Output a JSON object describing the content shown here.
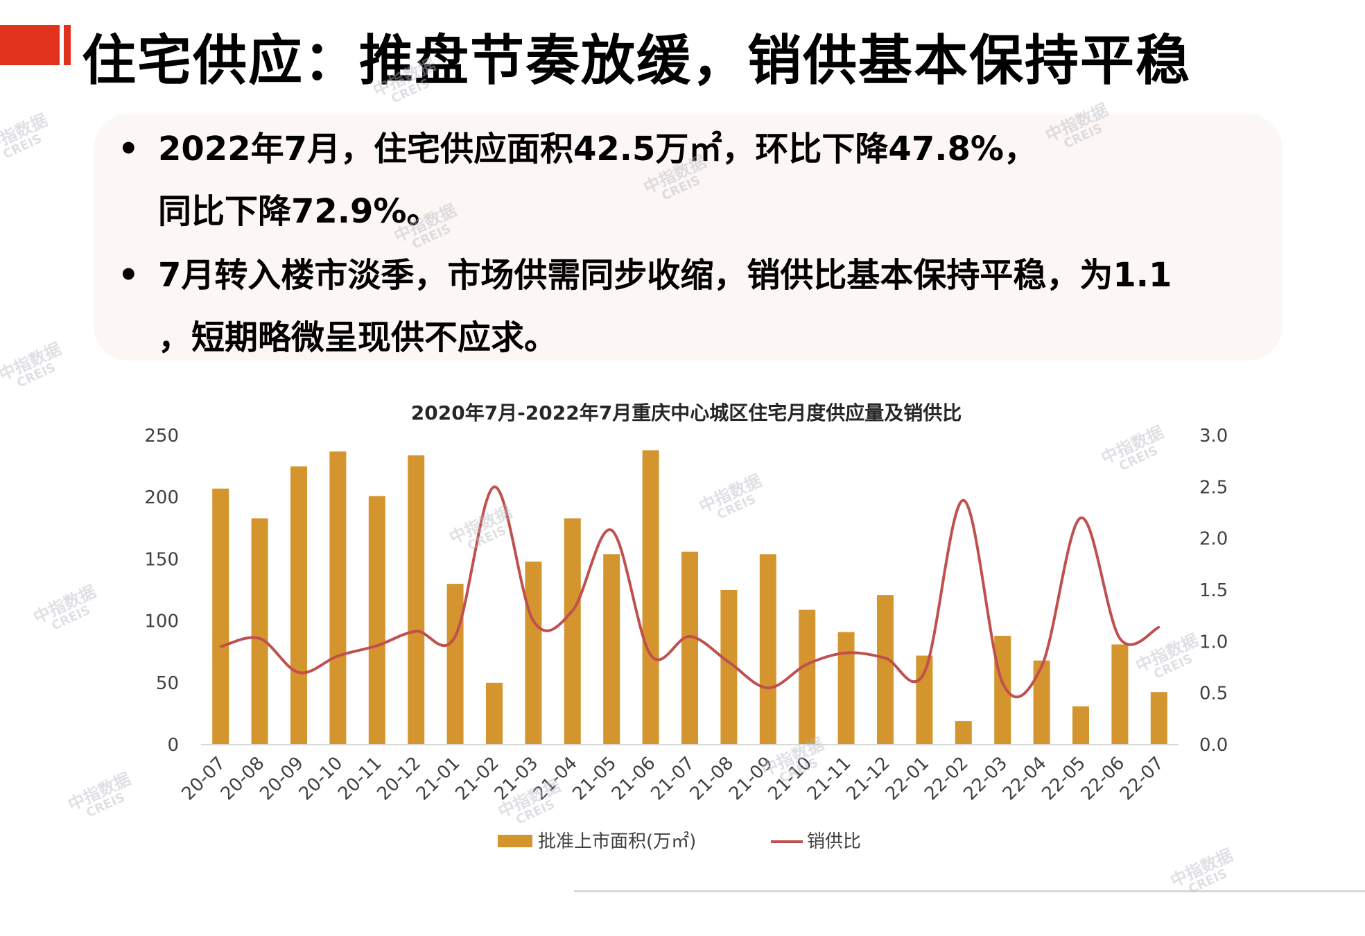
{
  "header": {
    "title": "住宅供应：推盘节奏放缓，销供基本保持平稳"
  },
  "bullets": [
    {
      "marker": "•",
      "line1": "2022年7月，住宅供应面积42.5万㎡，环比下降47.8%，",
      "line2": "同比下降72.9%。"
    },
    {
      "marker": "•",
      "line1": "7月转入楼市淡季，市场供需同步收缩，销供比基本保持平稳，为1.1",
      "line2": "，短期略微呈现供不应求。"
    }
  ],
  "watermark": {
    "cn": "中指数据",
    "en": "CREIS"
  },
  "colors": {
    "accent": "#e0321c",
    "bar": "#d4952f",
    "line": "#c0504d"
  },
  "chart_data": {
    "type": "bar",
    "title": "2020年7月-2022年7月重庆中心城区住宅月度供应量及销供比",
    "categories": [
      "20-07",
      "20-08",
      "20-09",
      "20-10",
      "20-11",
      "20-12",
      "21-01",
      "21-02",
      "21-03",
      "21-04",
      "21-05",
      "21-06",
      "21-07",
      "21-08",
      "21-09",
      "21-10",
      "21-11",
      "21-12",
      "22-01",
      "22-02",
      "22-03",
      "22-04",
      "22-05",
      "22-06",
      "22-07"
    ],
    "series": [
      {
        "name": "批准上市面积(万㎡)",
        "type": "bar",
        "axis": "left",
        "values": [
          207,
          183,
          225,
          237,
          201,
          234,
          130,
          50,
          148,
          183,
          154,
          238,
          156,
          125,
          154,
          109,
          91,
          121,
          72,
          19,
          88,
          68,
          31,
          81,
          42.5
        ]
      },
      {
        "name": "销供比",
        "type": "line",
        "axis": "right",
        "values": [
          0.95,
          1.03,
          0.7,
          0.86,
          0.96,
          1.1,
          1.05,
          2.5,
          1.2,
          1.3,
          2.08,
          0.87,
          1.05,
          0.8,
          0.55,
          0.78,
          0.89,
          0.84,
          0.7,
          2.37,
          0.6,
          0.76,
          2.2,
          1.03,
          1.14
        ]
      }
    ],
    "y_left": {
      "min": 0,
      "max": 250,
      "ticks": [
        "0",
        "50",
        "100",
        "150",
        "200",
        "250"
      ]
    },
    "y_right": {
      "min": 0,
      "max": 3,
      "ticks": [
        "0.0",
        "0.5",
        "1.0",
        "1.5",
        "2.0",
        "2.5",
        "3.0"
      ]
    },
    "legend": {
      "position": "bottom",
      "items": [
        "批准上市面积(万㎡)",
        "销供比"
      ]
    },
    "grid": false
  }
}
